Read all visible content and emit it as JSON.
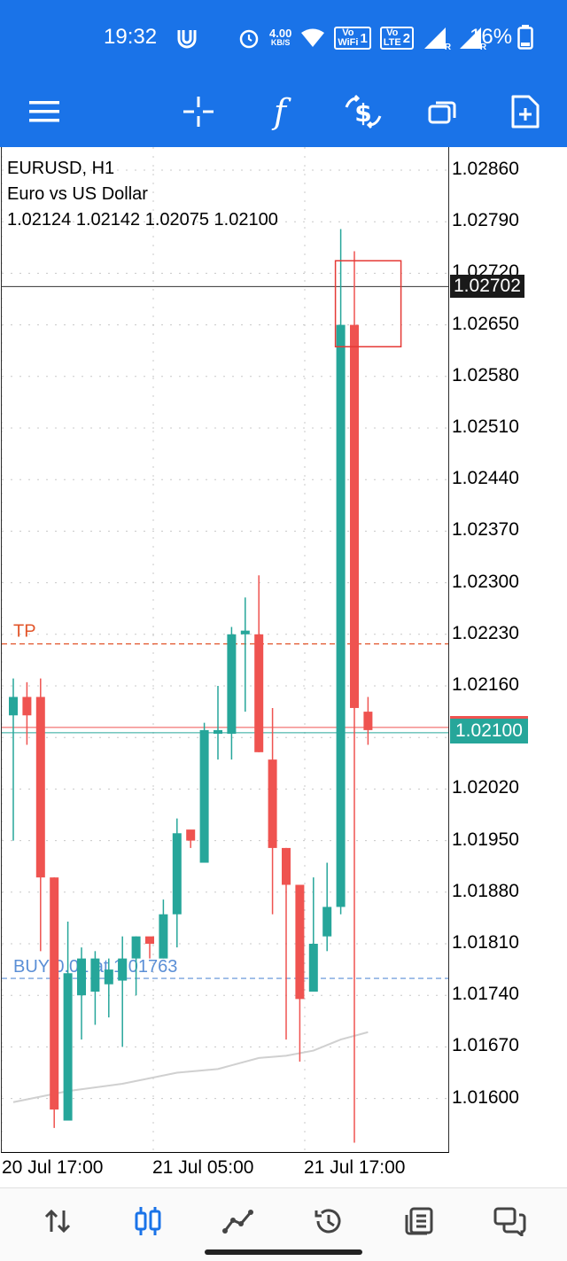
{
  "status_bar": {
    "time": "19:32",
    "speed_value": "4.00",
    "speed_unit": "KB/S",
    "wifi_badge_top": "Vo",
    "wifi_badge_bottom": "WiFi",
    "wifi_badge_num": "1",
    "lte_badge_top": "Vo",
    "lte_badge_bottom": "LTE",
    "lte_badge_num": "2",
    "signal_letter_1": "R",
    "signal_letter_2": "R",
    "battery_text": "16%",
    "icons": [
      "data-saver-icon",
      "alarm-icon",
      "wifi-icon",
      "signal-icon",
      "signal-icon",
      "battery-icon"
    ]
  },
  "toolbar": {
    "buttons": [
      "menu-icon",
      "crosshair-icon",
      "indicators-icon",
      "trade-icon",
      "windows-icon",
      "new-order-icon"
    ],
    "indicators_glyph": "f"
  },
  "chart_info": {
    "symbol_line": "EURUSD, H1",
    "description": "Euro vs US Dollar",
    "ohlc_line": "1.02124 1.02142 1.02075 1.02100"
  },
  "price_axis": {
    "labels": [
      "1.02860",
      "1.02790",
      "1.02720",
      "1.02650",
      "1.02580",
      "1.02510",
      "1.02440",
      "1.02370",
      "1.02300",
      "1.02230",
      "1.02160",
      "1.02090",
      "1.02020",
      "1.01950",
      "1.01880",
      "1.01810",
      "1.01740",
      "1.01670",
      "1.01600"
    ],
    "highlight_price": "1.02702",
    "current_price": "1.02100",
    "current_price_color": "#26a69a",
    "highlight_color": "#1a1a1a"
  },
  "lines": {
    "tp_label": "TP",
    "tp_price": 1.02217,
    "tp_color": "#e2552a",
    "buy_label": "BUY 0.01 at 1.01763",
    "buy_price": 1.01763,
    "buy_color": "#5b8fd6",
    "black_line_price": 1.02702,
    "bid_price": 1.021
  },
  "time_axis": {
    "labels": [
      "20 Jul 17:00",
      "21 Jul 05:00",
      "21 Jul 17:00"
    ]
  },
  "colors": {
    "bull": "#26a69a",
    "bear": "#ef5350",
    "brand": "#1a73e8",
    "ma": "#d0d0d0",
    "grid": "#c8c8c8"
  },
  "chart_data": {
    "type": "candlestick",
    "symbol": "EURUSD",
    "timeframe": "H1",
    "x_labels": [
      "20 Jul 17:00",
      "21 Jul 05:00",
      "21 Jul 17:00"
    ],
    "ylim": [
      1.0153,
      1.0291
    ],
    "candles": [
      {
        "o": 1.0212,
        "h": 1.0217,
        "l": 1.0195,
        "c": 1.02145
      },
      {
        "o": 1.02145,
        "h": 1.02165,
        "l": 1.0208,
        "c": 1.0212
      },
      {
        "o": 1.02145,
        "h": 1.0217,
        "l": 1.018,
        "c": 1.019
      },
      {
        "o": 1.019,
        "h": 1.019,
        "l": 1.0156,
        "c": 1.01585
      },
      {
        "o": 1.0157,
        "h": 1.0184,
        "l": 1.0157,
        "c": 1.0177
      },
      {
        "o": 1.0174,
        "h": 1.01805,
        "l": 1.0168,
        "c": 1.0179
      },
      {
        "o": 1.01745,
        "h": 1.018,
        "l": 1.017,
        "c": 1.0179
      },
      {
        "o": 1.01755,
        "h": 1.0179,
        "l": 1.0171,
        "c": 1.01775
      },
      {
        "o": 1.0176,
        "h": 1.0182,
        "l": 1.0167,
        "c": 1.0179
      },
      {
        "o": 1.0179,
        "h": 1.0182,
        "l": 1.0174,
        "c": 1.0182
      },
      {
        "o": 1.0182,
        "h": 1.01815,
        "l": 1.0179,
        "c": 1.0181
      },
      {
        "o": 1.0179,
        "h": 1.0187,
        "l": 1.0179,
        "c": 1.0185
      },
      {
        "o": 1.0185,
        "h": 1.0198,
        "l": 1.01805,
        "c": 1.0196
      },
      {
        "o": 1.01965,
        "h": 1.0196,
        "l": 1.0194,
        "c": 1.0195
      },
      {
        "o": 1.0192,
        "h": 1.0211,
        "l": 1.0192,
        "c": 1.021
      },
      {
        "o": 1.02095,
        "h": 1.0216,
        "l": 1.0206,
        "c": 1.021
      },
      {
        "o": 1.02095,
        "h": 1.0224,
        "l": 1.0206,
        "c": 1.0223
      },
      {
        "o": 1.0223,
        "h": 1.0228,
        "l": 1.02125,
        "c": 1.02235
      },
      {
        "o": 1.0223,
        "h": 1.0231,
        "l": 1.0207,
        "c": 1.0207
      },
      {
        "o": 1.0206,
        "h": 1.0213,
        "l": 1.0185,
        "c": 1.0194
      },
      {
        "o": 1.0194,
        "h": 1.0194,
        "l": 1.0168,
        "c": 1.0189
      },
      {
        "o": 1.0189,
        "h": 1.0189,
        "l": 1.0165,
        "c": 1.01735
      },
      {
        "o": 1.01745,
        "h": 1.019,
        "l": 1.01745,
        "c": 1.0181
      },
      {
        "o": 1.0182,
        "h": 1.0192,
        "l": 1.018,
        "c": 1.0186
      },
      {
        "o": 1.0186,
        "h": 1.0278,
        "l": 1.0185,
        "c": 1.0265
      },
      {
        "o": 1.0265,
        "h": 1.0275,
        "l": 1.0154,
        "c": 1.0213
      },
      {
        "o": 1.02125,
        "h": 1.02145,
        "l": 1.0208,
        "c": 1.021
      }
    ],
    "moving_average": [
      [
        0,
        1.01595
      ],
      [
        4,
        1.0161
      ],
      [
        8,
        1.0162
      ],
      [
        12,
        1.01635
      ],
      [
        15,
        1.0164
      ],
      [
        16,
        1.01645
      ],
      [
        18,
        1.01655
      ],
      [
        20,
        1.01658
      ],
      [
        22,
        1.01665
      ],
      [
        24,
        1.0168
      ],
      [
        26,
        1.0169
      ]
    ]
  }
}
